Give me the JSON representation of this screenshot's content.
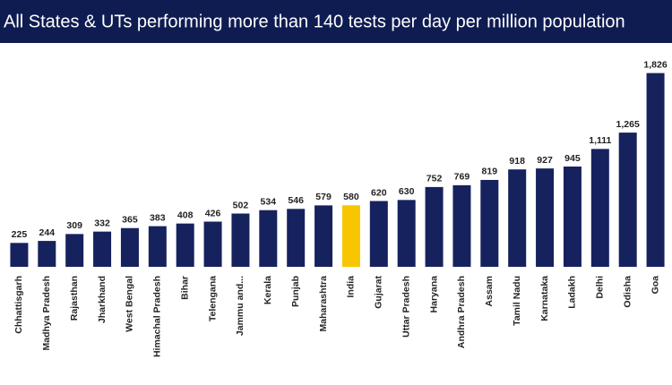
{
  "chart_data": {
    "type": "bar",
    "title": "All States & UTs performing more than 140 tests per day per million population",
    "categories": [
      "Chhattisgarh",
      "Madhya Pradesh",
      "Rajasthan",
      "Jharkhand",
      "West Bengal",
      "Himachal Pradesh",
      "Bihar",
      "Telengana",
      "Jammu and...",
      "Kerala",
      "Punjab",
      "Maharashtra",
      "India",
      "Gujarat",
      "Uttar Pradesh",
      "Haryana",
      "Andhra Pradesh",
      "Assam",
      "Tamil Nadu",
      "Karnataka",
      "Ladakh",
      "Delhi",
      "Odisha",
      "Goa"
    ],
    "values": [
      225,
      244,
      309,
      332,
      365,
      383,
      408,
      426,
      502,
      534,
      546,
      579,
      580,
      620,
      630,
      752,
      769,
      819,
      918,
      927,
      945,
      1111,
      1265,
      1826
    ],
    "value_labels": [
      "225",
      "244",
      "309",
      "332",
      "365",
      "383",
      "408",
      "426",
      "502",
      "534",
      "546",
      "579",
      "580",
      "620",
      "630",
      "752",
      "769",
      "819",
      "918",
      "927",
      "945",
      "1,111",
      "1,265",
      "1,826"
    ],
    "colors": [
      "#16225e",
      "#16225e",
      "#16225e",
      "#16225e",
      "#16225e",
      "#16225e",
      "#16225e",
      "#16225e",
      "#16225e",
      "#16225e",
      "#16225e",
      "#16225e",
      "#f7c600",
      "#16225e",
      "#16225e",
      "#16225e",
      "#16225e",
      "#16225e",
      "#16225e",
      "#16225e",
      "#16225e",
      "#16225e",
      "#16225e",
      "#16225e"
    ],
    "ylim": [
      0,
      2000
    ]
  }
}
